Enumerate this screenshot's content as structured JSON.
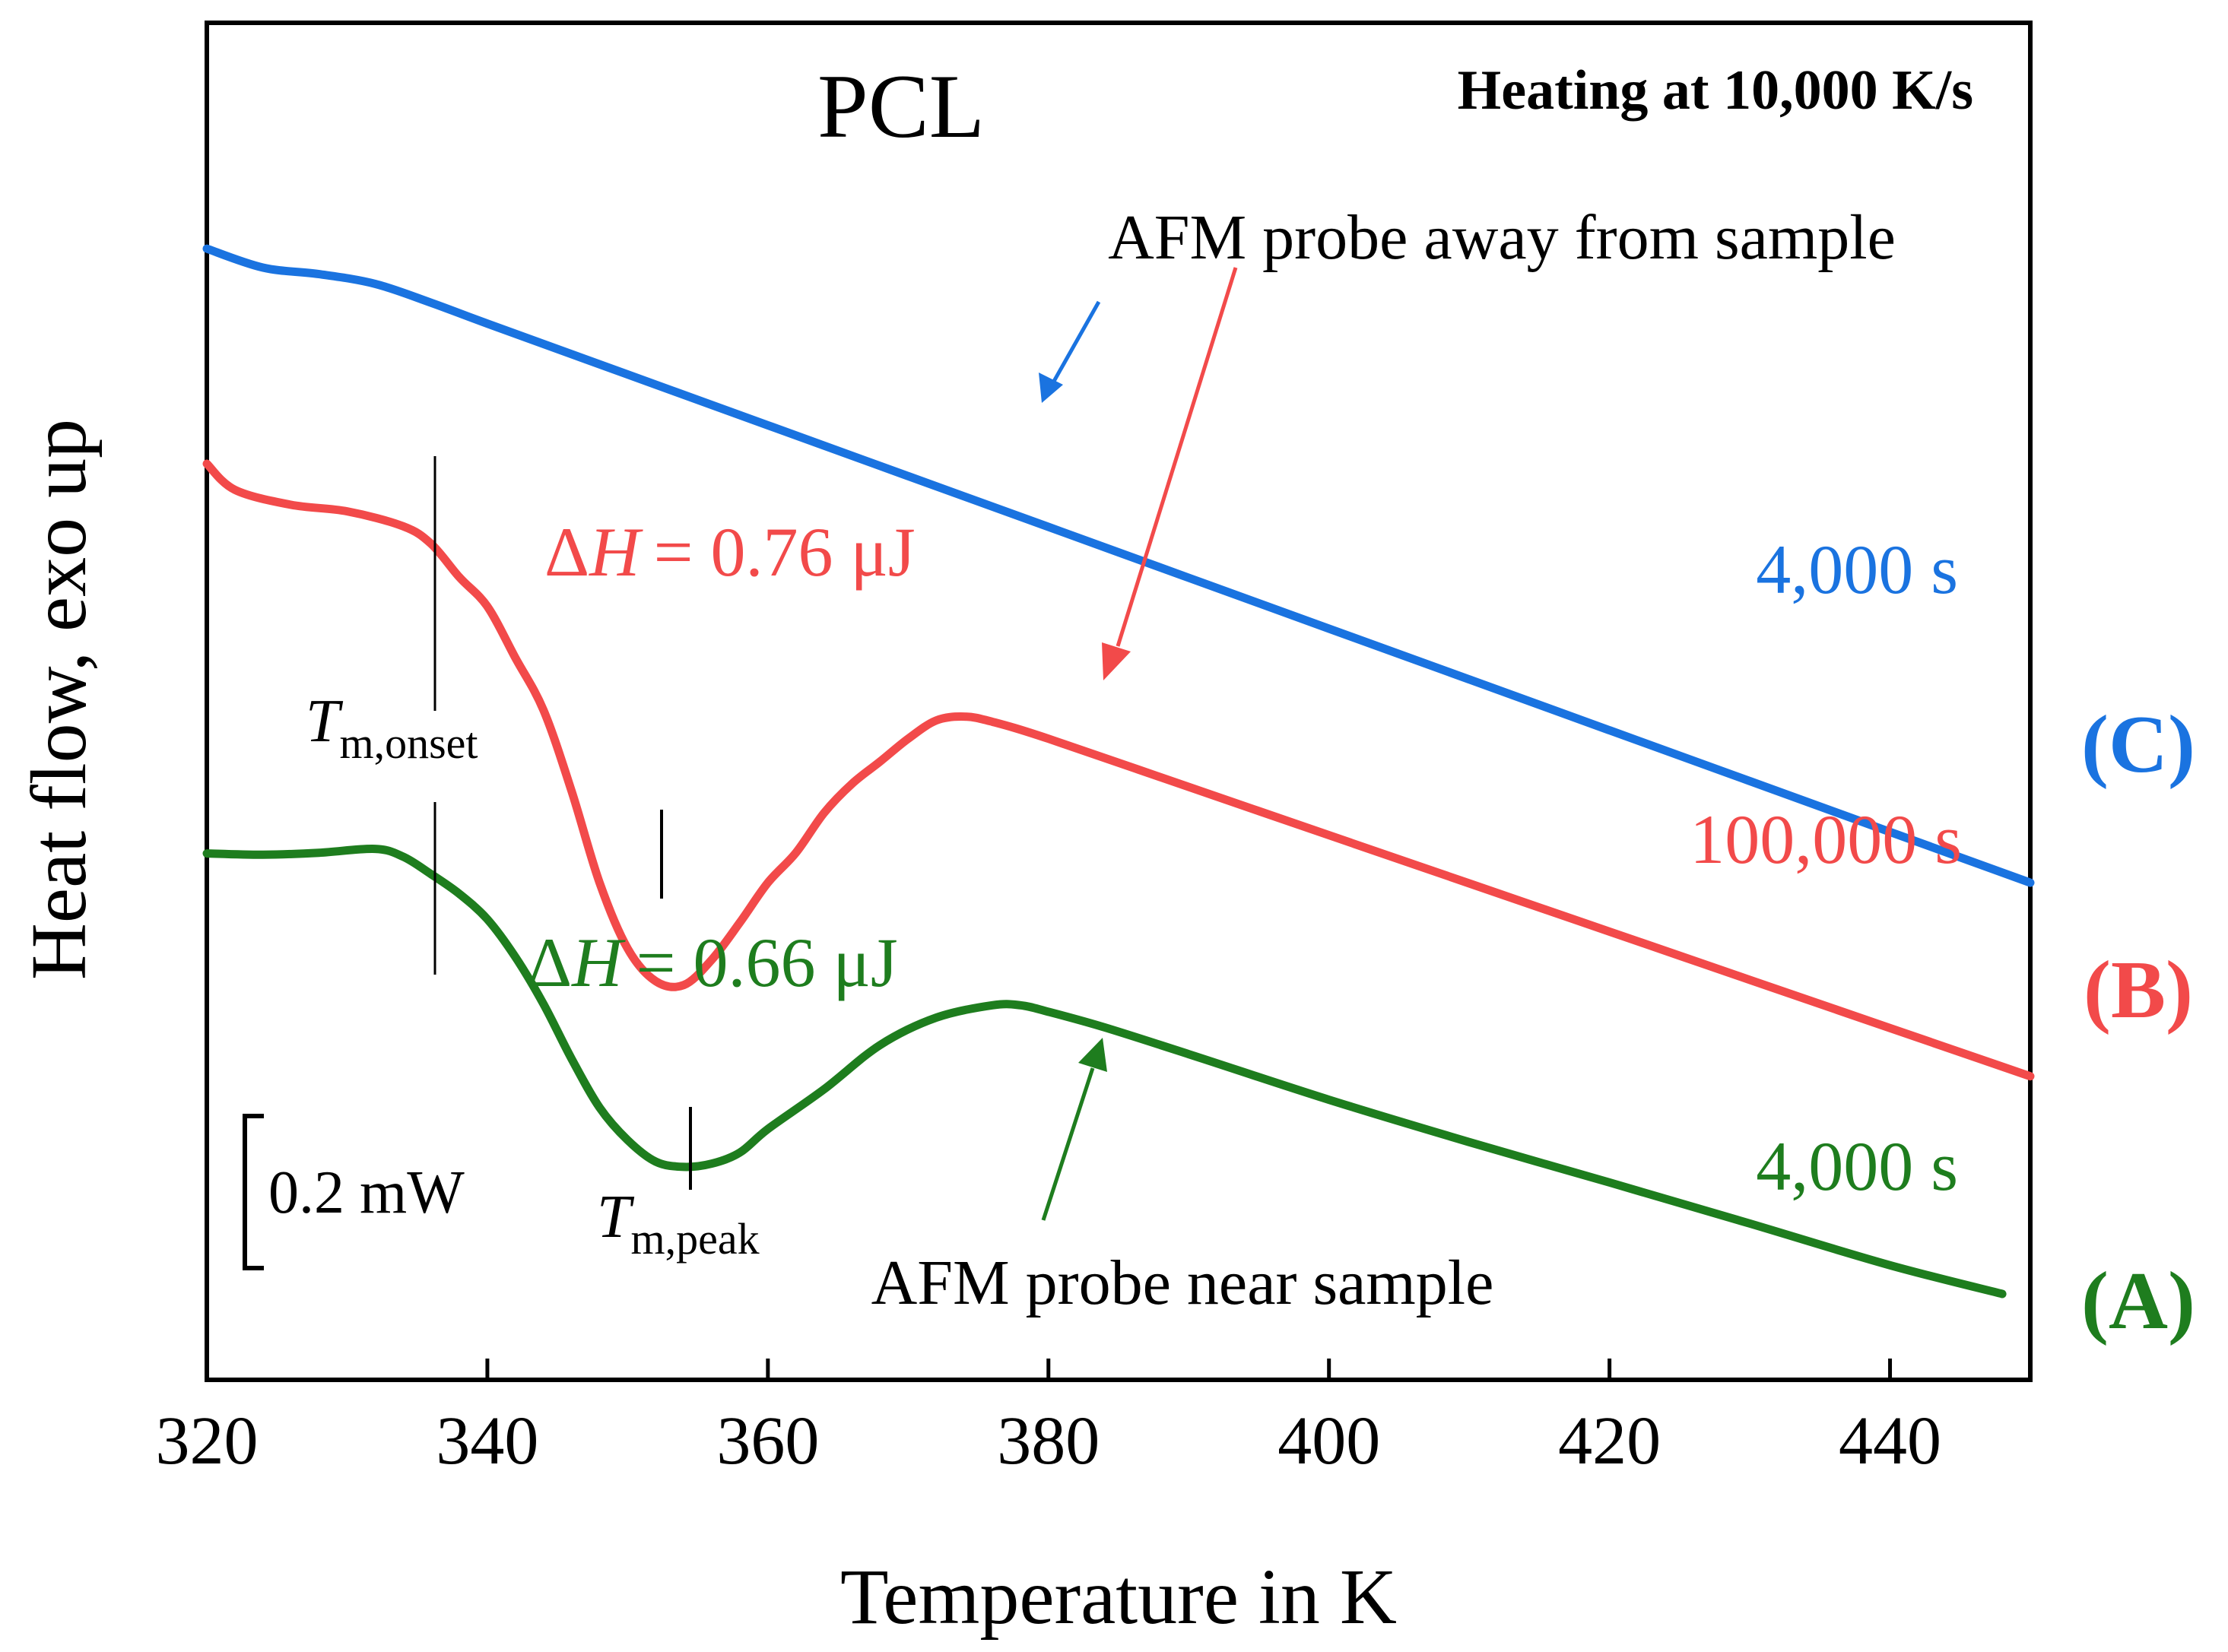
{
  "chart_data": {
    "type": "line",
    "title": "PCL",
    "subtitle": "Heating at 10,000 K/s",
    "xlabel": "Temperature in K",
    "ylabel": "Heat flow, exo up",
    "xlim": [
      320,
      450
    ],
    "x_ticks": [
      320,
      340,
      360,
      380,
      400,
      420,
      440
    ],
    "y_units": "mW (relative, curves offset)",
    "ylim": [
      -1.3,
      0.45
    ],
    "scale_bar": {
      "label": "0.2 mW",
      "value": 0.2
    },
    "series": [
      {
        "name": "(C)",
        "time_label": "4,000 s",
        "color": "#1a73e0",
        "x": [
          320,
          324,
          328,
          332,
          336,
          340,
          350,
          360,
          370,
          380,
          390,
          400,
          410,
          420,
          430,
          440,
          450
        ],
        "y": [
          0.29,
          0.261,
          0.251,
          0.236,
          0.207,
          0.175,
          0.097,
          0.019,
          -0.059,
          -0.137,
          -0.215,
          -0.293,
          -0.371,
          -0.449,
          -0.527,
          -0.605,
          -0.683
        ]
      },
      {
        "name": "(B)",
        "time_label": "100,000 s",
        "color": "#f24a4a",
        "x": [
          320,
          322,
          326,
          330,
          334,
          336,
          338,
          340,
          342,
          344,
          346,
          348,
          350,
          352,
          354,
          356,
          358,
          360,
          362,
          364,
          366,
          368,
          370,
          372,
          374,
          376,
          380,
          390,
          400,
          410,
          420,
          430,
          440,
          450
        ],
        "y": [
          -0.04,
          -0.08,
          -0.103,
          -0.113,
          -0.136,
          -0.163,
          -0.214,
          -0.259,
          -0.338,
          -0.418,
          -0.542,
          -0.683,
          -0.784,
          -0.834,
          -0.84,
          -0.801,
          -0.744,
          -0.683,
          -0.637,
          -0.576,
          -0.531,
          -0.497,
          -0.462,
          -0.434,
          -0.428,
          -0.436,
          -0.462,
          -0.536,
          -0.61,
          -0.684,
          -0.758,
          -0.832,
          -0.906,
          -0.98
        ]
      },
      {
        "name": "(A)",
        "time_label": "4,000 s",
        "color": "#1e7d1e",
        "x": [
          320,
          324,
          328,
          332,
          334,
          336,
          338,
          340,
          342,
          344,
          346,
          348,
          350,
          352,
          354,
          356,
          358,
          360,
          364,
          368,
          372,
          376,
          378,
          380,
          384,
          390,
          400,
          410,
          420,
          430,
          440,
          448
        ],
        "y": [
          -0.638,
          -0.64,
          -0.637,
          -0.631,
          -0.643,
          -0.67,
          -0.7,
          -0.739,
          -0.797,
          -0.869,
          -0.953,
          -1.028,
          -1.078,
          -1.111,
          -1.119,
          -1.114,
          -1.097,
          -1.061,
          -1.0,
          -0.932,
          -0.89,
          -0.871,
          -0.871,
          -0.881,
          -0.905,
          -0.946,
          -1.016,
          -1.081,
          -1.143,
          -1.206,
          -1.27,
          -1.314
        ]
      }
    ],
    "annotations": {
      "dh_b": {
        "symbol": "Δ",
        "var": "H",
        "text": "= 0.76 μJ",
        "color": "#f24a4a"
      },
      "dh_a": {
        "symbol": "Δ",
        "var": "H",
        "text": "= 0.66 μJ",
        "color": "#1e7d1e"
      },
      "t_onset": {
        "main": "T",
        "sub": "m,onset",
        "x": 336.2
      },
      "t_peak": {
        "main": "T",
        "sub": "m,peak"
      },
      "peak_b_x": 352.6,
      "peak_a_x": 354.7,
      "probe_away": "AFM probe away from sample",
      "probe_near": "AFM probe near sample"
    }
  }
}
